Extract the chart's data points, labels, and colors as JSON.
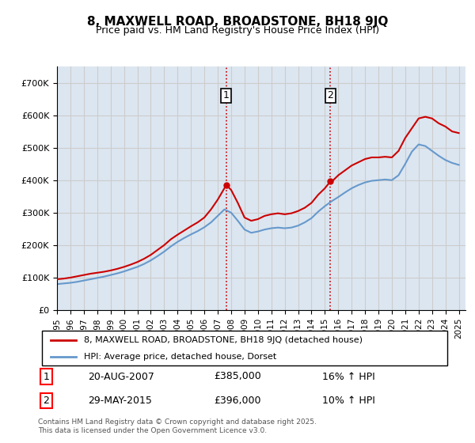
{
  "title": "8, MAXWELL ROAD, BROADSTONE, BH18 9JQ",
  "subtitle": "Price paid vs. HM Land Registry's House Price Index (HPI)",
  "ylabel_ticks": [
    "£0",
    "£100K",
    "£200K",
    "£300K",
    "£400K",
    "£500K",
    "£600K",
    "£700K"
  ],
  "ylim": [
    0,
    750000
  ],
  "xlim_start": 1995.0,
  "xlim_end": 2025.5,
  "background_color": "#ffffff",
  "grid_color": "#cccccc",
  "plot_bg_color": "#dce6f0",
  "red_line_color": "#cc0000",
  "blue_line_color": "#6699cc",
  "vline_color": "#cc0000",
  "vline_style": ":",
  "purchase1_x": 2007.64,
  "purchase1_y": 385000,
  "purchase1_label": "1",
  "purchase2_x": 2015.41,
  "purchase2_y": 396000,
  "purchase2_label": "2",
  "legend1": "8, MAXWELL ROAD, BROADSTONE, BH18 9JQ (detached house)",
  "legend2": "HPI: Average price, detached house, Dorset",
  "annotation1_date": "20-AUG-2007",
  "annotation1_price": "£385,000",
  "annotation1_hpi": "16% ↑ HPI",
  "annotation2_date": "29-MAY-2015",
  "annotation2_price": "£396,000",
  "annotation2_hpi": "10% ↑ HPI",
  "footer": "Contains HM Land Registry data © Crown copyright and database right 2025.\nThis data is licensed under the Open Government Licence v3.0.",
  "xticks": [
    1995,
    1996,
    1997,
    1998,
    1999,
    2000,
    2001,
    2002,
    2003,
    2004,
    2005,
    2006,
    2007,
    2008,
    2009,
    2010,
    2011,
    2012,
    2013,
    2014,
    2015,
    2016,
    2017,
    2018,
    2019,
    2020,
    2021,
    2022,
    2023,
    2024,
    2025
  ],
  "red_x": [
    1995.0,
    1995.5,
    1996.0,
    1996.5,
    1997.0,
    1997.5,
    1998.0,
    1998.5,
    1999.0,
    1999.5,
    2000.0,
    2000.5,
    2001.0,
    2001.5,
    2002.0,
    2002.5,
    2003.0,
    2003.5,
    2004.0,
    2004.5,
    2005.0,
    2005.5,
    2006.0,
    2006.5,
    2007.0,
    2007.64,
    2008.0,
    2008.5,
    2009.0,
    2009.5,
    2010.0,
    2010.5,
    2011.0,
    2011.5,
    2012.0,
    2012.5,
    2013.0,
    2013.5,
    2014.0,
    2014.5,
    2015.0,
    2015.41,
    2015.5,
    2016.0,
    2016.5,
    2017.0,
    2017.5,
    2018.0,
    2018.5,
    2019.0,
    2019.5,
    2020.0,
    2020.5,
    2021.0,
    2021.5,
    2022.0,
    2022.5,
    2023.0,
    2023.5,
    2024.0,
    2024.5,
    2025.0
  ],
  "red_y": [
    95000,
    97000,
    100000,
    104000,
    108000,
    112000,
    115000,
    118000,
    122000,
    127000,
    133000,
    140000,
    148000,
    158000,
    170000,
    185000,
    200000,
    218000,
    232000,
    245000,
    258000,
    270000,
    285000,
    310000,
    340000,
    385000,
    370000,
    330000,
    285000,
    275000,
    280000,
    290000,
    295000,
    298000,
    295000,
    298000,
    305000,
    315000,
    330000,
    355000,
    375000,
    396000,
    395000,
    415000,
    430000,
    445000,
    455000,
    465000,
    470000,
    470000,
    472000,
    470000,
    490000,
    530000,
    560000,
    590000,
    595000,
    590000,
    575000,
    565000,
    550000,
    545000
  ],
  "blue_x": [
    1995.0,
    1995.5,
    1996.0,
    1996.5,
    1997.0,
    1997.5,
    1998.0,
    1998.5,
    1999.0,
    1999.5,
    2000.0,
    2000.5,
    2001.0,
    2001.5,
    2002.0,
    2002.5,
    2003.0,
    2003.5,
    2004.0,
    2004.5,
    2005.0,
    2005.5,
    2006.0,
    2006.5,
    2007.0,
    2007.5,
    2008.0,
    2008.5,
    2009.0,
    2009.5,
    2010.0,
    2010.5,
    2011.0,
    2011.5,
    2012.0,
    2012.5,
    2013.0,
    2013.5,
    2014.0,
    2014.5,
    2015.0,
    2015.5,
    2016.0,
    2016.5,
    2017.0,
    2017.5,
    2018.0,
    2018.5,
    2019.0,
    2019.5,
    2020.0,
    2020.5,
    2021.0,
    2021.5,
    2022.0,
    2022.5,
    2023.0,
    2023.5,
    2024.0,
    2024.5,
    2025.0
  ],
  "blue_y": [
    80000,
    82000,
    84000,
    87000,
    91000,
    95000,
    99000,
    103000,
    108000,
    113000,
    119000,
    126000,
    133000,
    142000,
    153000,
    166000,
    180000,
    196000,
    210000,
    222000,
    233000,
    243000,
    255000,
    270000,
    290000,
    310000,
    300000,
    275000,
    248000,
    238000,
    242000,
    248000,
    252000,
    254000,
    252000,
    254000,
    260000,
    270000,
    283000,
    303000,
    320000,
    335000,
    348000,
    362000,
    375000,
    385000,
    393000,
    398000,
    400000,
    402000,
    400000,
    415000,
    450000,
    488000,
    510000,
    505000,
    490000,
    475000,
    462000,
    453000,
    447000
  ]
}
